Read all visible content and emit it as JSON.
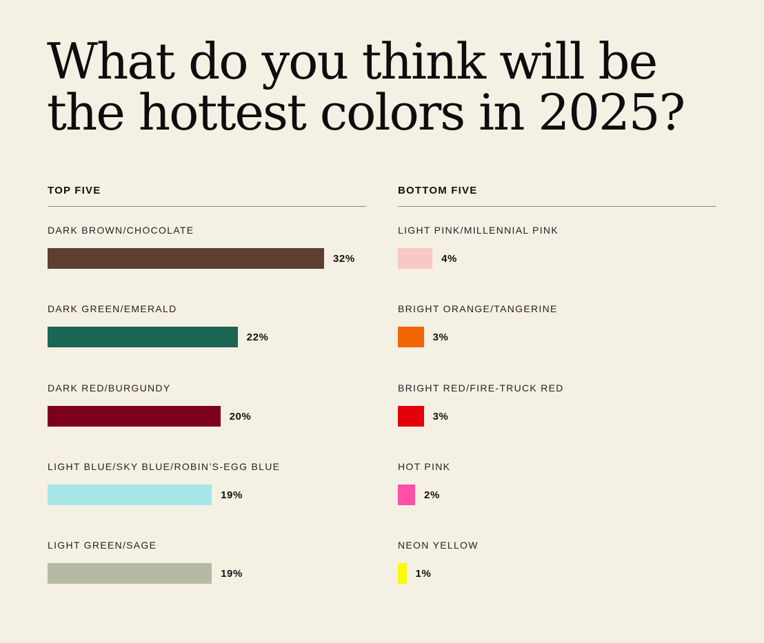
{
  "title_lines": [
    "What do you think will be",
    "the hottest colors in 2025?"
  ],
  "chart_data": [
    {
      "type": "bar",
      "orientation": "horizontal",
      "title": "TOP FIVE",
      "categories": [
        "DARK BROWN/CHOCOLATE",
        "DARK GREEN/EMERALD",
        "DARK RED/BURGUNDY",
        "LIGHT BLUE/SKY BLUE/ROBIN’S-EGG BLUE",
        "LIGHT GREEN/SAGE"
      ],
      "values": [
        32,
        22,
        20,
        19,
        19
      ],
      "value_labels": [
        "32%",
        "22%",
        "20%",
        "19%",
        "19%"
      ],
      "colors": [
        "#5e3e31",
        "#1b6553",
        "#7c001e",
        "#a6e6e6",
        "#b5baa5"
      ],
      "grid": false
    },
    {
      "type": "bar",
      "orientation": "horizontal",
      "title": "BOTTOM FIVE",
      "categories": [
        "LIGHT PINK/MILLENNIAL PINK",
        "BRIGHT ORANGE/TANGERINE",
        "BRIGHT RED/FIRE-TRUCK RED",
        "HOT PINK",
        "NEON YELLOW"
      ],
      "values": [
        4,
        3,
        3,
        2,
        1
      ],
      "value_labels": [
        "4%",
        "3%",
        "3%",
        "2%",
        "1%"
      ],
      "colors": [
        "#f7c8c6",
        "#f36505",
        "#e4000b",
        "#ff4fa6",
        "#fafa0a"
      ],
      "grid": false
    }
  ]
}
